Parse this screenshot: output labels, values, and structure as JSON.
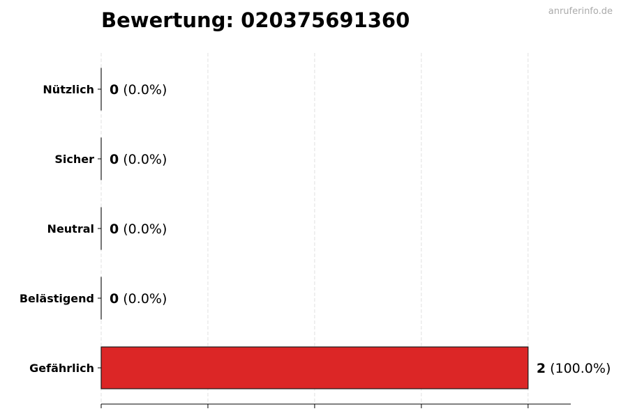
{
  "chart_data": {
    "type": "bar",
    "orientation": "horizontal",
    "title": "Bewertung: 020375691360",
    "watermark": "anruferinfo.de",
    "categories": [
      "Nützlich",
      "Sicher",
      "Neutral",
      "Belästigend",
      "Gefährlich"
    ],
    "values": [
      0,
      0,
      0,
      0,
      2
    ],
    "percent_labels": [
      "(0.0%)",
      "(0.0%)",
      "(0.0%)",
      "(0.0%)",
      "(100.0%)"
    ],
    "xlim": [
      0,
      2.2
    ],
    "xticks": [
      0,
      0.5,
      1,
      1.5,
      2
    ],
    "xtick_labels_shown": false,
    "grid": "vertical dashed",
    "xlabel": "",
    "ylabel": "",
    "colors": {
      "Gefährlich": "#dc2626",
      "edge": "#1a1a1a",
      "grid": "#d9d9d9"
    }
  }
}
